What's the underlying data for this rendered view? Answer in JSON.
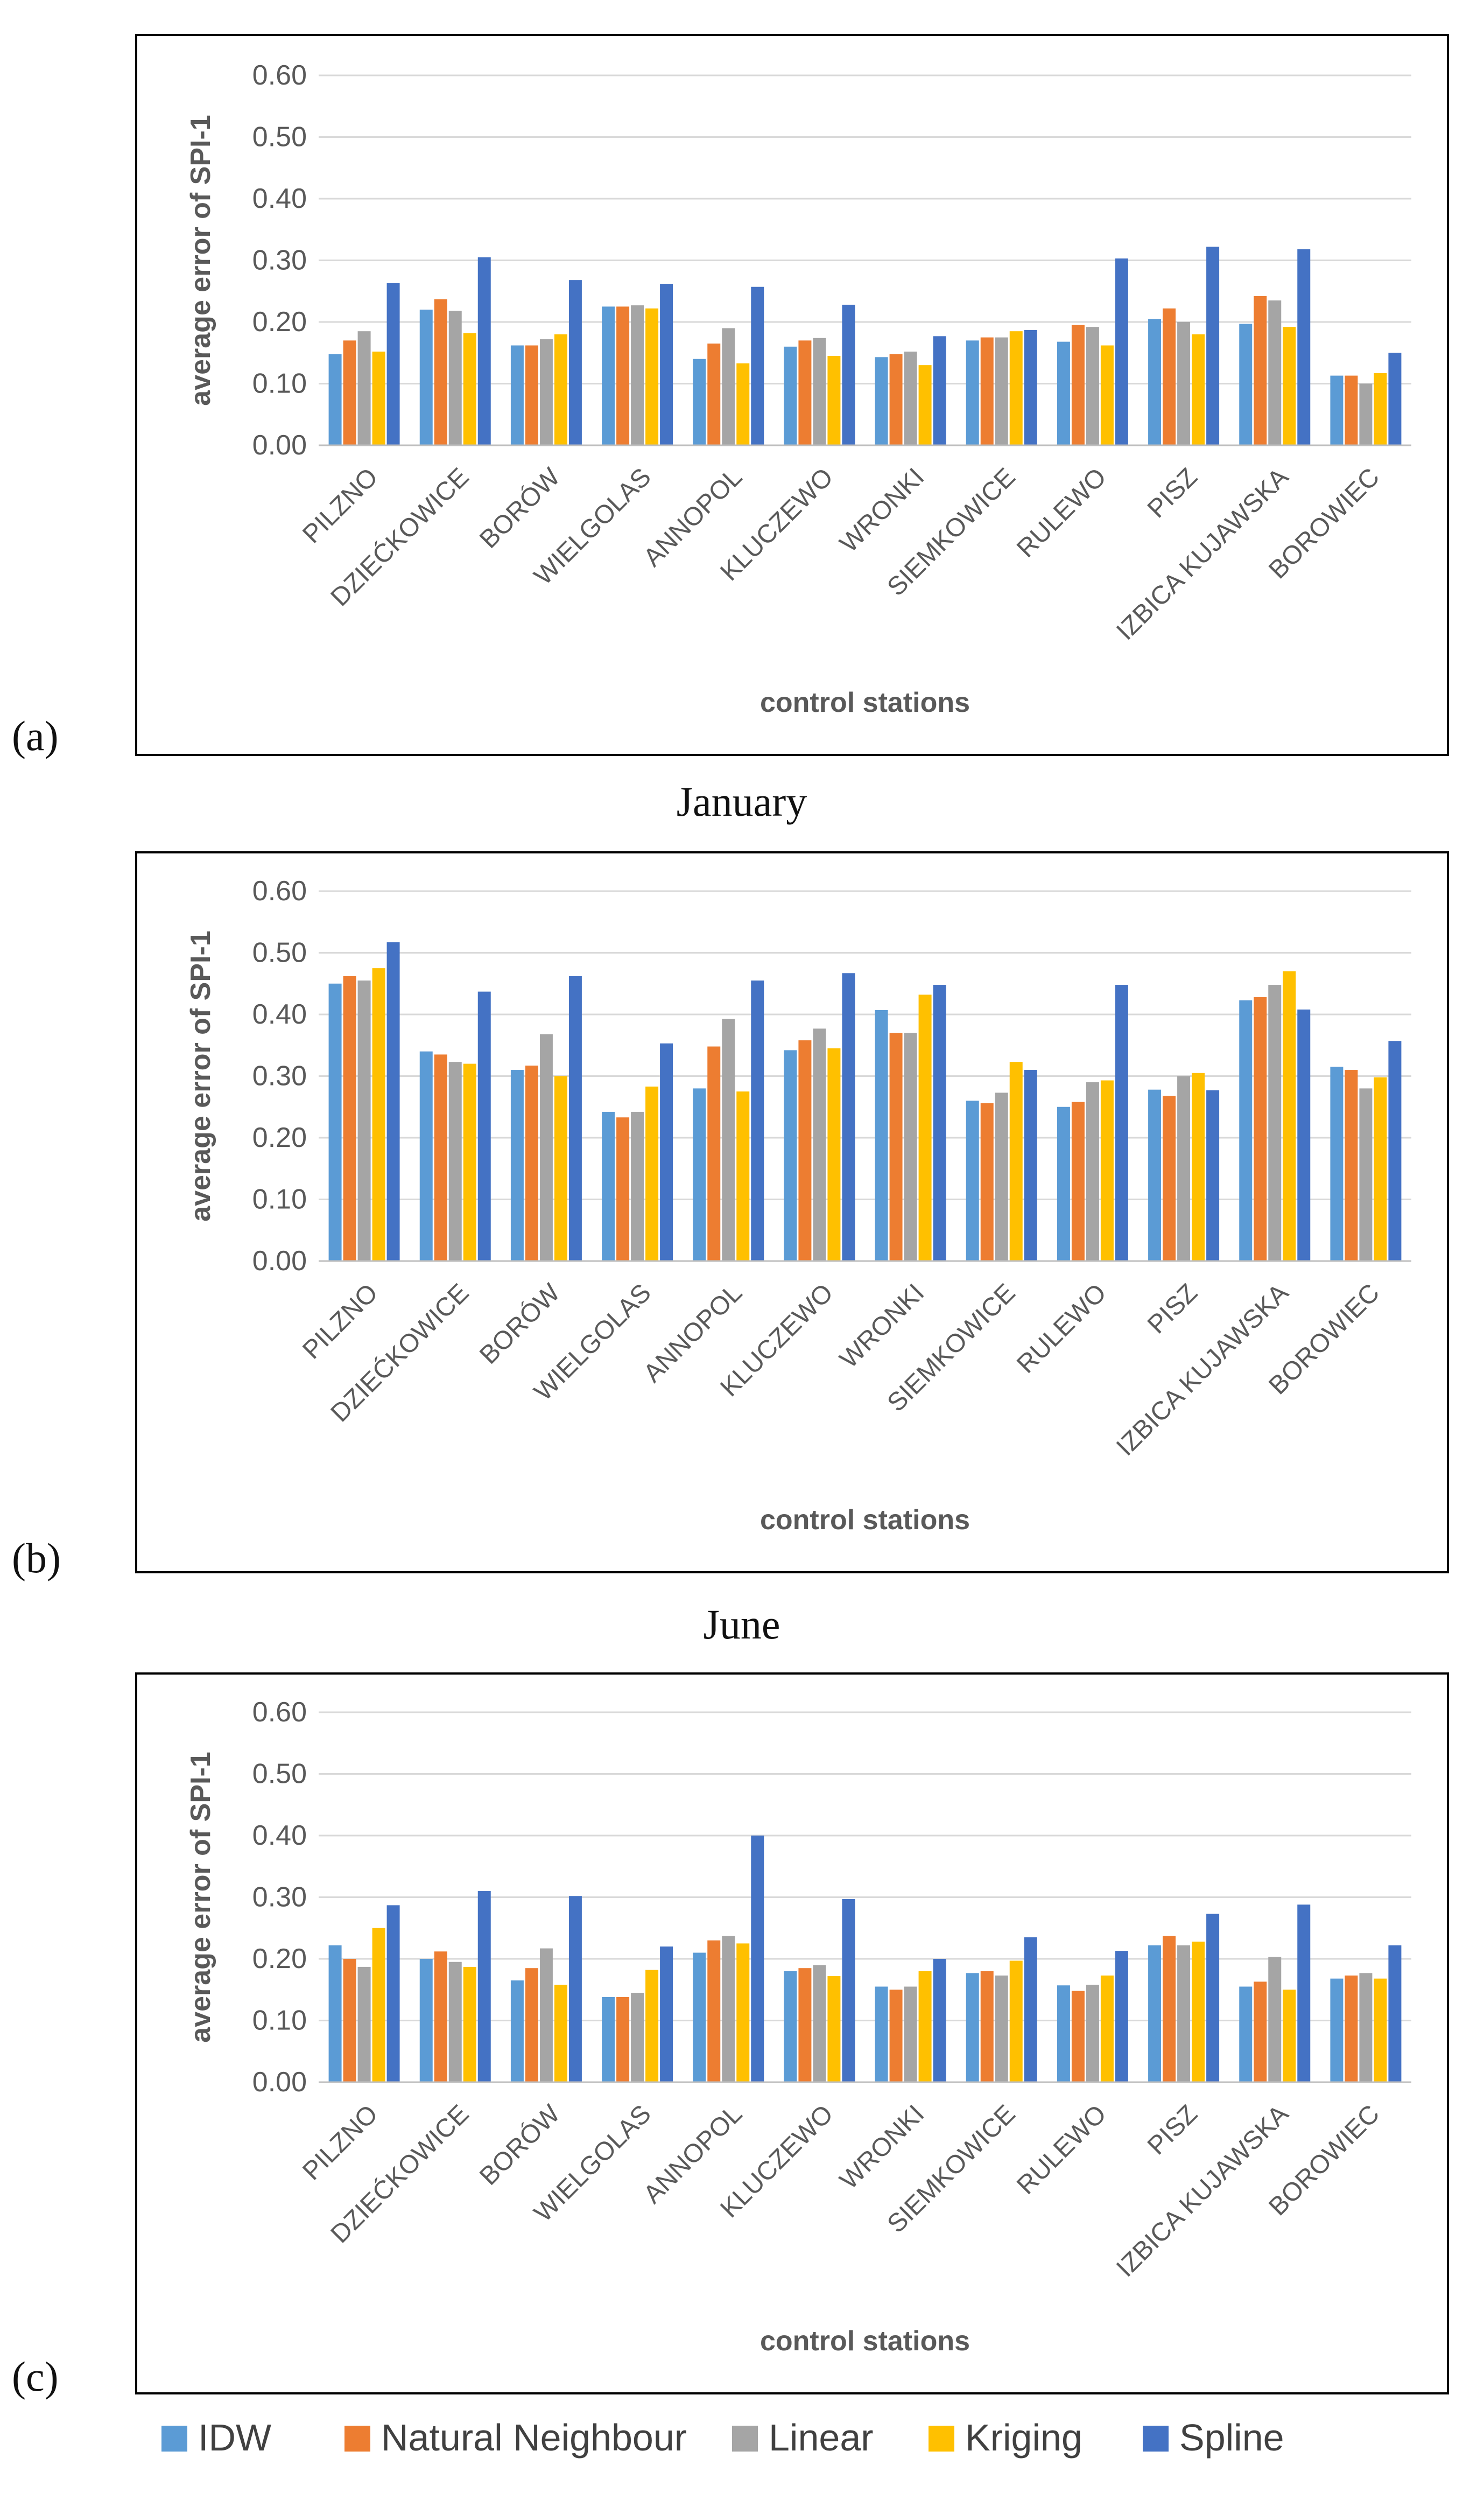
{
  "legend": {
    "entries": [
      {
        "name": "IDW",
        "color": "#5B9BD5"
      },
      {
        "name": "Natural Neighbour",
        "color": "#ED7D31"
      },
      {
        "name": "Linear",
        "color": "#A5A5A5"
      },
      {
        "name": "Kriging",
        "color": "#FFC000"
      },
      {
        "name": "Spline",
        "color": "#4472C4"
      }
    ]
  },
  "chart_data": [
    {
      "type": "bar",
      "panel_label": "(a)",
      "month_label": "",
      "xlabel": "control stations",
      "ylabel": "average error of SPI-1",
      "ylim": [
        0,
        0.6
      ],
      "yticks": [
        "0.00",
        "0.10",
        "0.20",
        "0.30",
        "0.40",
        "0.50",
        "0.60"
      ],
      "gridlines": true,
      "categories": [
        "PILZNO",
        "DZIEĆKOWICE",
        "BORÓW",
        "WIELGOLAS",
        "ANNOPOL",
        "KLUCZEWO",
        "WRONKI",
        "SIEMKOWICE",
        "RULEWO",
        "PISZ",
        "IZBICA KUJAWSKA",
        "BOROWIEC"
      ],
      "series": [
        {
          "name": "IDW",
          "values": [
            0.148,
            0.22,
            0.162,
            0.225,
            0.14,
            0.16,
            0.143,
            0.17,
            0.168,
            0.205,
            0.197,
            0.113
          ]
        },
        {
          "name": "Natural Neighbour",
          "values": [
            0.17,
            0.237,
            0.162,
            0.225,
            0.165,
            0.17,
            0.148,
            0.175,
            0.195,
            0.222,
            0.242,
            0.113
          ]
        },
        {
          "name": "Linear",
          "values": [
            0.185,
            0.218,
            0.172,
            0.227,
            0.19,
            0.174,
            0.152,
            0.175,
            0.192,
            0.2,
            0.235,
            0.1
          ]
        },
        {
          "name": "Kriging",
          "values": [
            0.152,
            0.182,
            0.18,
            0.222,
            0.133,
            0.145,
            0.13,
            0.185,
            0.162,
            0.18,
            0.192,
            0.117
          ]
        },
        {
          "name": "Spline",
          "values": [
            0.263,
            0.305,
            0.268,
            0.262,
            0.257,
            0.228,
            0.177,
            0.187,
            0.303,
            0.322,
            0.318,
            0.15
          ]
        }
      ]
    },
    {
      "type": "bar",
      "panel_label": "(b)",
      "month_label": "January",
      "xlabel": "control stations",
      "ylabel": "average error of SPI-1",
      "ylim": [
        0,
        0.6
      ],
      "yticks": [
        "0.00",
        "0.10",
        "0.20",
        "0.30",
        "0.40",
        "0.50",
        "0.60"
      ],
      "gridlines": true,
      "categories": [
        "PILZNO",
        "DZIEĆKOWICE",
        "BORÓW",
        "WIELGOLAS",
        "ANNOPOL",
        "KLUCZEWO",
        "WRONKI",
        "SIEMKOWICE",
        "RULEWO",
        "PISZ",
        "IZBICA KUJAWSKA",
        "BOROWIEC"
      ],
      "series": [
        {
          "name": "IDW",
          "values": [
            0.45,
            0.34,
            0.31,
            0.242,
            0.28,
            0.342,
            0.407,
            0.26,
            0.25,
            0.278,
            0.423,
            0.315
          ]
        },
        {
          "name": "Natural Neighbour",
          "values": [
            0.462,
            0.335,
            0.317,
            0.233,
            0.348,
            0.358,
            0.37,
            0.256,
            0.258,
            0.268,
            0.428,
            0.31
          ]
        },
        {
          "name": "Linear",
          "values": [
            0.455,
            0.323,
            0.368,
            0.242,
            0.393,
            0.377,
            0.37,
            0.273,
            0.29,
            0.3,
            0.448,
            0.28
          ]
        },
        {
          "name": "Kriging",
          "values": [
            0.475,
            0.32,
            0.3,
            0.283,
            0.275,
            0.345,
            0.432,
            0.323,
            0.293,
            0.305,
            0.47,
            0.298
          ]
        },
        {
          "name": "Spline",
          "values": [
            0.517,
            0.437,
            0.462,
            0.353,
            0.455,
            0.467,
            0.448,
            0.31,
            0.448,
            0.277,
            0.408,
            0.357
          ]
        }
      ]
    },
    {
      "type": "bar",
      "panel_label": "(c)",
      "month_label": "June",
      "xlabel": "control stations",
      "ylabel": "average error of SPI-1",
      "ylim": [
        0,
        0.6
      ],
      "yticks": [
        "0.00",
        "0.10",
        "0.20",
        "0.30",
        "0.40",
        "0.50",
        "0.60"
      ],
      "gridlines": true,
      "categories": [
        "PILZNO",
        "DZIEĆKOWICE",
        "BORÓW",
        "WIELGOLAS",
        "ANNOPOL",
        "KLUCZEWO",
        "WRONKI",
        "SIEMKOWICE",
        "RULEWO",
        "PISZ",
        "IZBICA KUJAWSKA",
        "BOROWIEC"
      ],
      "series": [
        {
          "name": "IDW",
          "values": [
            0.222,
            0.2,
            0.165,
            0.138,
            0.21,
            0.18,
            0.155,
            0.177,
            0.157,
            0.222,
            0.155,
            0.168
          ]
        },
        {
          "name": "Natural Neighbour",
          "values": [
            0.2,
            0.212,
            0.185,
            0.138,
            0.23,
            0.185,
            0.15,
            0.18,
            0.148,
            0.237,
            0.163,
            0.173
          ]
        },
        {
          "name": "Linear",
          "values": [
            0.187,
            0.195,
            0.217,
            0.145,
            0.237,
            0.19,
            0.155,
            0.173,
            0.158,
            0.222,
            0.203,
            0.177
          ]
        },
        {
          "name": "Kriging",
          "values": [
            0.25,
            0.187,
            0.158,
            0.182,
            0.225,
            0.172,
            0.18,
            0.197,
            0.173,
            0.228,
            0.15,
            0.168
          ]
        },
        {
          "name": "Spline",
          "values": [
            0.287,
            0.31,
            0.302,
            0.22,
            0.4,
            0.297,
            0.2,
            0.235,
            0.213,
            0.273,
            0.288,
            0.222
          ]
        }
      ]
    }
  ]
}
